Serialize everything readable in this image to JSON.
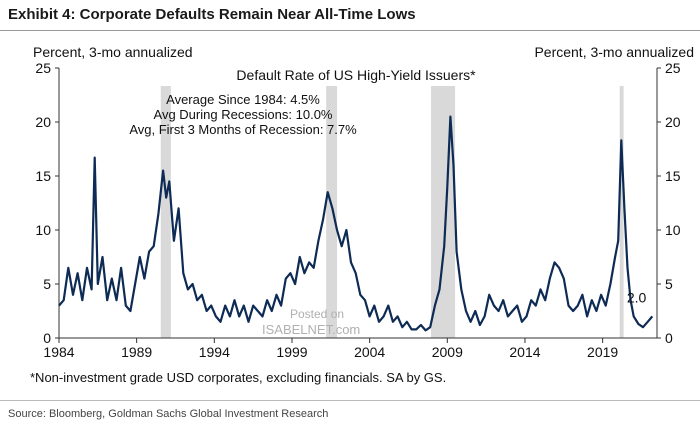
{
  "header": {
    "exhibit_title": "Exhibit 4: Corporate Defaults Remain Near All-Time Lows",
    "left_axis_caption": "Percent, 3-mo annualized",
    "right_axis_caption": "Percent, 3-mo annualized"
  },
  "footnote": "*Non-investment grade USD corporates, excluding financials. SA by GS.",
  "source": "Source: Bloomberg, Goldman Sachs Global Investment Research",
  "watermark": {
    "line1": "Posted on",
    "line2": "ISABELNET.com"
  },
  "colors": {
    "line": "#0d2b55",
    "recession": "#d9d9d9",
    "text": "#111111"
  },
  "chart_data": {
    "type": "line",
    "title": "Default Rate of US High-Yield Issuers*",
    "stats_lines": [
      "Average Since 1984: 4.5%",
      "Avg During Recessions: 10.0%",
      "Avg, First 3 Months of Recession: 7.7%"
    ],
    "xlabel": "",
    "ylabel": "Percent, 3-mo annualized",
    "xlim": [
      1984,
      2022.5
    ],
    "ylim": [
      0,
      25
    ],
    "x_ticks": [
      1984,
      1989,
      1994,
      1999,
      2004,
      2009,
      2014,
      2019
    ],
    "y_ticks": [
      0,
      5,
      10,
      15,
      20,
      25
    ],
    "recessions": [
      [
        1990.55,
        1991.2
      ],
      [
        2001.2,
        2001.9
      ],
      [
        2007.95,
        2009.5
      ],
      [
        2020.1,
        2020.35
      ]
    ],
    "end_label": "2.0",
    "series": [
      {
        "name": "Default rate (3-mo annualized)",
        "x": [
          1984.0,
          1984.3,
          1984.6,
          1984.9,
          1985.2,
          1985.5,
          1985.8,
          1986.1,
          1986.3,
          1986.5,
          1986.8,
          1987.1,
          1987.4,
          1987.7,
          1988.0,
          1988.3,
          1988.6,
          1988.9,
          1989.2,
          1989.5,
          1989.8,
          1990.1,
          1990.4,
          1990.7,
          1990.9,
          1991.1,
          1991.4,
          1991.7,
          1992.0,
          1992.3,
          1992.6,
          1992.9,
          1993.2,
          1993.5,
          1993.8,
          1994.1,
          1994.4,
          1994.7,
          1995.0,
          1995.3,
          1995.6,
          1995.9,
          1996.2,
          1996.5,
          1996.8,
          1997.1,
          1997.4,
          1997.7,
          1998.0,
          1998.3,
          1998.6,
          1998.9,
          1999.2,
          1999.5,
          1999.8,
          2000.1,
          2000.4,
          2000.7,
          2001.0,
          2001.3,
          2001.6,
          2001.9,
          2002.2,
          2002.5,
          2002.8,
          2003.1,
          2003.4,
          2003.7,
          2004.0,
          2004.3,
          2004.6,
          2004.9,
          2005.2,
          2005.5,
          2005.8,
          2006.1,
          2006.4,
          2006.7,
          2007.0,
          2007.3,
          2007.6,
          2007.9,
          2008.2,
          2008.5,
          2008.8,
          2009.0,
          2009.2,
          2009.4,
          2009.6,
          2009.9,
          2010.2,
          2010.5,
          2010.8,
          2011.1,
          2011.4,
          2011.7,
          2012.0,
          2012.3,
          2012.6,
          2012.9,
          2013.2,
          2013.5,
          2013.8,
          2014.1,
          2014.4,
          2014.7,
          2015.0,
          2015.3,
          2015.6,
          2015.9,
          2016.2,
          2016.5,
          2016.8,
          2017.1,
          2017.4,
          2017.7,
          2018.0,
          2018.3,
          2018.6,
          2018.9,
          2019.2,
          2019.5,
          2019.8,
          2020.0,
          2020.2,
          2020.4,
          2020.6,
          2020.8,
          2021.0,
          2021.3,
          2021.6,
          2021.9,
          2022.2
        ],
        "values": [
          3.0,
          3.5,
          6.5,
          4.0,
          6.0,
          3.5,
          6.5,
          4.5,
          16.7,
          5.0,
          7.5,
          3.5,
          5.5,
          3.5,
          6.5,
          3.0,
          2.5,
          5.0,
          7.5,
          5.5,
          8.0,
          8.5,
          11.5,
          15.5,
          13.0,
          14.5,
          9.0,
          12.0,
          6.0,
          4.5,
          5.0,
          3.5,
          4.0,
          2.5,
          3.0,
          2.0,
          1.5,
          3.0,
          2.0,
          3.5,
          2.0,
          3.0,
          1.5,
          3.0,
          2.5,
          2.0,
          3.5,
          2.5,
          4.0,
          3.0,
          5.5,
          6.0,
          5.0,
          7.5,
          6.0,
          7.0,
          6.5,
          9.0,
          11.0,
          13.5,
          12.0,
          10.0,
          8.5,
          10.0,
          7.0,
          6.0,
          4.0,
          3.5,
          2.0,
          3.0,
          1.5,
          2.0,
          3.0,
          1.5,
          2.0,
          1.0,
          1.5,
          0.8,
          0.8,
          1.2,
          0.7,
          1.0,
          3.0,
          4.5,
          8.5,
          14.0,
          20.5,
          16.0,
          8.0,
          4.5,
          2.5,
          1.5,
          2.5,
          1.2,
          2.0,
          4.0,
          3.0,
          2.5,
          3.5,
          2.0,
          2.5,
          3.0,
          1.5,
          2.0,
          3.5,
          3.0,
          4.5,
          3.5,
          5.5,
          7.0,
          6.5,
          5.5,
          3.0,
          2.5,
          3.0,
          4.0,
          2.0,
          3.5,
          2.5,
          4.0,
          3.0,
          5.0,
          7.5,
          9.0,
          18.3,
          12.0,
          6.5,
          3.5,
          2.0,
          1.3,
          1.0,
          1.5,
          2.0
        ]
      }
    ]
  }
}
